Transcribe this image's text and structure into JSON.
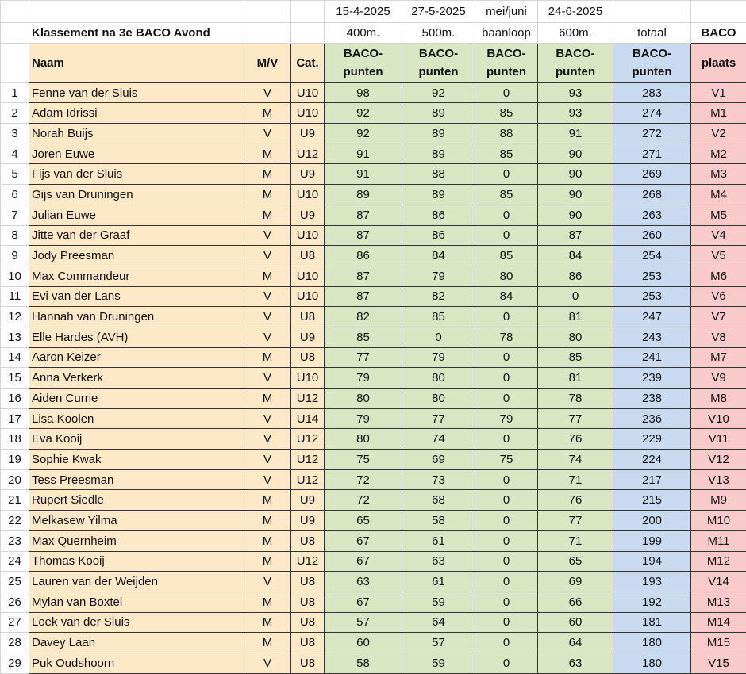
{
  "title": "Klassement na 3e BACO Avond",
  "dates": [
    "15-4-2025",
    "27-5-2025",
    "mei/juni",
    "24-6-2025"
  ],
  "events": [
    "400m.",
    "500m.",
    "baanloop",
    "600m."
  ],
  "totaal_label": "totaal",
  "baco_label": "BACO",
  "headers": {
    "naam": "Naam",
    "mv": "M/V",
    "cat": "Cat.",
    "points": "BACO-punten",
    "plaats": "plaats"
  },
  "colors": {
    "name_bg": "#fde9c8",
    "points_bg": "#d8e6c4",
    "total_bg": "#c9daf0",
    "place_bg": "#f8caca"
  },
  "rows": [
    {
      "n": "1",
      "naam": "Fenne van der Sluis",
      "mv": "V",
      "cat": "U10",
      "p": [
        "98",
        "92",
        "0",
        "93"
      ],
      "tot": "283",
      "pl": "V1"
    },
    {
      "n": "2",
      "naam": "Adam Idrissi",
      "mv": "M",
      "cat": "U10",
      "p": [
        "92",
        "89",
        "85",
        "93"
      ],
      "tot": "274",
      "pl": "M1"
    },
    {
      "n": "3",
      "naam": "Norah Buijs",
      "mv": "V",
      "cat": "U9",
      "p": [
        "92",
        "89",
        "88",
        "91"
      ],
      "tot": "272",
      "pl": "V2"
    },
    {
      "n": "4",
      "naam": "Joren Euwe",
      "mv": "M",
      "cat": "U12",
      "p": [
        "91",
        "89",
        "85",
        "90"
      ],
      "tot": "271",
      "pl": "M2"
    },
    {
      "n": "5",
      "naam": "Fijs van der Sluis",
      "mv": "M",
      "cat": "U9",
      "p": [
        "91",
        "88",
        "0",
        "90"
      ],
      "tot": "269",
      "pl": "M3"
    },
    {
      "n": "6",
      "naam": "Gijs van Druningen",
      "mv": "M",
      "cat": "U10",
      "p": [
        "89",
        "89",
        "85",
        "90"
      ],
      "tot": "268",
      "pl": "M4"
    },
    {
      "n": "7",
      "naam": "Julian Euwe",
      "mv": "M",
      "cat": "U9",
      "p": [
        "87",
        "86",
        "0",
        "90"
      ],
      "tot": "263",
      "pl": "M5"
    },
    {
      "n": "8",
      "naam": "Jitte van der Graaf",
      "mv": "V",
      "cat": "U10",
      "p": [
        "87",
        "86",
        "0",
        "87"
      ],
      "tot": "260",
      "pl": "V4"
    },
    {
      "n": "9",
      "naam": "Jody Preesman",
      "mv": "V",
      "cat": "U8",
      "p": [
        "86",
        "84",
        "85",
        "84"
      ],
      "tot": "254",
      "pl": "V5"
    },
    {
      "n": "10",
      "naam": "Max Commandeur",
      "mv": "M",
      "cat": "U10",
      "p": [
        "87",
        "79",
        "80",
        "86"
      ],
      "tot": "253",
      "pl": "M6"
    },
    {
      "n": "11",
      "naam": "Evi van der Lans",
      "mv": "V",
      "cat": "U10",
      "p": [
        "87",
        "82",
        "84",
        "0"
      ],
      "tot": "253",
      "pl": "V6"
    },
    {
      "n": "12",
      "naam": "Hannah van Druningen",
      "mv": "V",
      "cat": "U8",
      "p": [
        "82",
        "85",
        "0",
        "81"
      ],
      "tot": "247",
      "pl": "V7"
    },
    {
      "n": "13",
      "naam": "Elle Hardes (AVH)",
      "mv": "V",
      "cat": "U9",
      "p": [
        "85",
        "0",
        "78",
        "80"
      ],
      "tot": "243",
      "pl": "V8"
    },
    {
      "n": "14",
      "naam": "Aaron Keizer",
      "mv": "M",
      "cat": "U8",
      "p": [
        "77",
        "79",
        "0",
        "85"
      ],
      "tot": "241",
      "pl": "M7"
    },
    {
      "n": "15",
      "naam": "Anna Verkerk",
      "mv": "V",
      "cat": "U10",
      "p": [
        "79",
        "80",
        "0",
        "81"
      ],
      "tot": "239",
      "pl": "V9"
    },
    {
      "n": "16",
      "naam": "Aiden Currie",
      "mv": "M",
      "cat": "U12",
      "p": [
        "80",
        "80",
        "0",
        "78"
      ],
      "tot": "238",
      "pl": "M8"
    },
    {
      "n": "17",
      "naam": "Lisa Koolen",
      "mv": "V",
      "cat": "U14",
      "p": [
        "79",
        "77",
        "79",
        "77"
      ],
      "tot": "236",
      "pl": "V10"
    },
    {
      "n": "18",
      "naam": "Eva Kooij",
      "mv": "V",
      "cat": "U12",
      "p": [
        "80",
        "74",
        "0",
        "76"
      ],
      "tot": "229",
      "pl": "V11"
    },
    {
      "n": "19",
      "naam": "Sophie Kwak",
      "mv": "V",
      "cat": "U12",
      "p": [
        "75",
        "69",
        "75",
        "74"
      ],
      "tot": "224",
      "pl": "V12"
    },
    {
      "n": "20",
      "naam": "Tess Preesman",
      "mv": "V",
      "cat": "U12",
      "p": [
        "72",
        "73",
        "0",
        "71"
      ],
      "tot": "217",
      "pl": "V13"
    },
    {
      "n": "21",
      "naam": "Rupert Siedle",
      "mv": "M",
      "cat": "U9",
      "p": [
        "72",
        "68",
        "0",
        "76"
      ],
      "tot": "215",
      "pl": "M9"
    },
    {
      "n": "22",
      "naam": "Melkasew Yilma",
      "mv": "M",
      "cat": "U9",
      "p": [
        "65",
        "58",
        "0",
        "77"
      ],
      "tot": "200",
      "pl": "M10"
    },
    {
      "n": "23",
      "naam": "Max Quernheim",
      "mv": "M",
      "cat": "U8",
      "p": [
        "67",
        "61",
        "0",
        "71"
      ],
      "tot": "199",
      "pl": "M11"
    },
    {
      "n": "24",
      "naam": "Thomas Kooij",
      "mv": "M",
      "cat": "U12",
      "p": [
        "67",
        "63",
        "0",
        "65"
      ],
      "tot": "194",
      "pl": "M12"
    },
    {
      "n": "25",
      "naam": "Lauren van der Weijden",
      "mv": "V",
      "cat": "U8",
      "p": [
        "63",
        "61",
        "0",
        "69"
      ],
      "tot": "193",
      "pl": "V14"
    },
    {
      "n": "26",
      "naam": "Mylan van Boxtel",
      "mv": "M",
      "cat": "U8",
      "p": [
        "67",
        "59",
        "0",
        "66"
      ],
      "tot": "192",
      "pl": "M13"
    },
    {
      "n": "27",
      "naam": "Loek van der Sluis",
      "mv": "M",
      "cat": "U8",
      "p": [
        "57",
        "64",
        "0",
        "60"
      ],
      "tot": "181",
      "pl": "M14"
    },
    {
      "n": "28",
      "naam": "Davey Laan",
      "mv": "M",
      "cat": "U8",
      "p": [
        "60",
        "57",
        "0",
        "64"
      ],
      "tot": "180",
      "pl": "M15"
    },
    {
      "n": "29",
      "naam": "Puk Oudshoorn",
      "mv": "V",
      "cat": "U8",
      "p": [
        "58",
        "59",
        "0",
        "63"
      ],
      "tot": "180",
      "pl": "V15"
    }
  ]
}
